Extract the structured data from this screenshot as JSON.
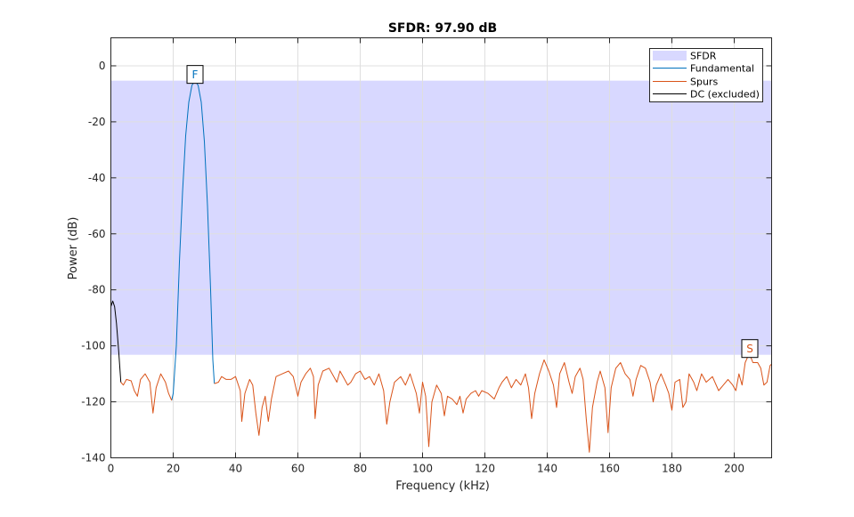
{
  "chart_data": {
    "type": "line",
    "title": "SFDR:  97.90 dB",
    "xlabel": "Frequency (kHz)",
    "ylabel": "Power (dB)",
    "xlim": [
      0,
      212
    ],
    "ylim": [
      -140,
      10
    ],
    "x_ticks": [
      0,
      20,
      40,
      60,
      80,
      100,
      120,
      140,
      160,
      180,
      200
    ],
    "y_ticks": [
      0,
      -20,
      -40,
      -60,
      -80,
      -100,
      -120,
      -140
    ],
    "grid": true,
    "legend_position": "top-right",
    "sfdr_band": {
      "top": -5.3,
      "bottom": -103.2,
      "color": "#d8d8ff"
    },
    "markers": [
      {
        "label": "F",
        "x": 27,
        "y": -5.3,
        "color": "#0072bd"
      },
      {
        "label": "S",
        "x": 205,
        "y": -103.2,
        "color": "#d95319"
      }
    ],
    "series": [
      {
        "name": "SFDR",
        "color": "#d8d8ff",
        "kind": "band"
      },
      {
        "name": "Fundamental",
        "color": "#0072bd",
        "kind": "line",
        "points": [
          [
            19.5,
            -119.5
          ],
          [
            20,
            -117
          ],
          [
            21,
            -100
          ],
          [
            22,
            -70
          ],
          [
            23,
            -45
          ],
          [
            24,
            -25
          ],
          [
            25,
            -13
          ],
          [
            26,
            -7
          ],
          [
            27,
            -5.3
          ],
          [
            28,
            -7
          ],
          [
            29,
            -13
          ],
          [
            30,
            -27
          ],
          [
            31,
            -50
          ],
          [
            32,
            -80
          ],
          [
            32.7,
            -105
          ],
          [
            33.2,
            -113.5
          ]
        ]
      },
      {
        "name": "Spurs",
        "color": "#d95319",
        "kind": "line",
        "points": [
          [
            3.2,
            -113
          ],
          [
            4,
            -114
          ],
          [
            5,
            -112
          ],
          [
            6.5,
            -112.5
          ],
          [
            7.5,
            -116
          ],
          [
            8.5,
            -118
          ],
          [
            9.5,
            -112
          ],
          [
            11,
            -110
          ],
          [
            12.5,
            -113
          ],
          [
            13.5,
            -124
          ],
          [
            14.5,
            -115
          ],
          [
            16,
            -110
          ],
          [
            17.5,
            -113
          ],
          [
            18.5,
            -117
          ],
          [
            19.5,
            -119.5
          ]
        ]
      },
      {
        "name": "Spurs",
        "color": "#d95319",
        "kind": "line",
        "points": [
          [
            33.2,
            -113.5
          ],
          [
            34.5,
            -113
          ],
          [
            35.5,
            -111
          ],
          [
            37,
            -112
          ],
          [
            38.5,
            -112
          ],
          [
            40,
            -111
          ],
          [
            41.5,
            -116
          ],
          [
            42,
            -127
          ],
          [
            43,
            -117
          ],
          [
            44.5,
            -112
          ],
          [
            45.5,
            -114
          ],
          [
            46.5,
            -124
          ],
          [
            47.5,
            -132
          ],
          [
            48.5,
            -122
          ],
          [
            49.5,
            -118
          ],
          [
            50.5,
            -127
          ],
          [
            51.5,
            -119
          ],
          [
            53,
            -111
          ],
          [
            55,
            -110
          ],
          [
            57,
            -109
          ],
          [
            58.5,
            -111
          ],
          [
            60,
            -118
          ],
          [
            61,
            -113
          ],
          [
            62.5,
            -110
          ],
          [
            64,
            -108
          ],
          [
            65,
            -111
          ],
          [
            65.5,
            -126
          ],
          [
            66.5,
            -114
          ],
          [
            68,
            -109
          ],
          [
            70,
            -108
          ],
          [
            71.5,
            -111
          ],
          [
            72.5,
            -113
          ],
          [
            73.5,
            -109
          ],
          [
            75,
            -112
          ],
          [
            76,
            -114
          ],
          [
            77,
            -113
          ],
          [
            78.5,
            -110
          ],
          [
            80,
            -109
          ],
          [
            81.5,
            -112
          ],
          [
            83,
            -111
          ],
          [
            84.5,
            -114
          ],
          [
            86,
            -110
          ],
          [
            87.5,
            -116
          ],
          [
            88.5,
            -128
          ],
          [
            89.5,
            -120
          ],
          [
            91,
            -113
          ],
          [
            93,
            -111
          ],
          [
            94.5,
            -114
          ],
          [
            96,
            -110
          ],
          [
            98,
            -117
          ],
          [
            99,
            -124
          ],
          [
            100,
            -113
          ],
          [
            101,
            -118
          ],
          [
            102,
            -136
          ],
          [
            103,
            -120
          ],
          [
            104.5,
            -114
          ],
          [
            106,
            -117
          ],
          [
            107,
            -125
          ],
          [
            108,
            -118
          ],
          [
            109.5,
            -119
          ],
          [
            111,
            -121
          ],
          [
            112,
            -118
          ],
          [
            113,
            -124
          ],
          [
            114,
            -119
          ],
          [
            115.5,
            -117
          ],
          [
            117,
            -116
          ],
          [
            118,
            -118
          ],
          [
            119,
            -116
          ],
          [
            121,
            -117
          ],
          [
            123,
            -119
          ],
          [
            124.5,
            -115
          ],
          [
            125.5,
            -113
          ],
          [
            127,
            -111
          ],
          [
            128.5,
            -115
          ],
          [
            130,
            -112
          ],
          [
            131.5,
            -114
          ],
          [
            133,
            -110
          ],
          [
            134,
            -115
          ],
          [
            135,
            -126
          ],
          [
            136,
            -117
          ],
          [
            137.5,
            -110
          ],
          [
            139,
            -105
          ],
          [
            140.5,
            -109
          ],
          [
            142,
            -114
          ],
          [
            143,
            -122
          ],
          [
            144,
            -110
          ],
          [
            145.5,
            -106
          ],
          [
            147,
            -113
          ],
          [
            148,
            -117
          ],
          [
            149,
            -111
          ],
          [
            150.5,
            -108
          ],
          [
            151.5,
            -112
          ],
          [
            152.5,
            -126
          ],
          [
            153.5,
            -138
          ],
          [
            154.5,
            -122
          ],
          [
            156,
            -113
          ],
          [
            157,
            -109
          ],
          [
            158.5,
            -115
          ],
          [
            159.5,
            -131
          ],
          [
            160.5,
            -115
          ],
          [
            162,
            -108
          ],
          [
            163.5,
            -106
          ],
          [
            165,
            -110
          ],
          [
            166.5,
            -112
          ],
          [
            167.5,
            -118
          ],
          [
            168.5,
            -112
          ],
          [
            170,
            -107
          ],
          [
            171.5,
            -108
          ],
          [
            173,
            -113
          ],
          [
            174,
            -120
          ],
          [
            175,
            -114
          ],
          [
            176.5,
            -110
          ],
          [
            178,
            -114
          ],
          [
            179,
            -117
          ],
          [
            180,
            -123
          ],
          [
            181,
            -113
          ],
          [
            182.5,
            -112
          ],
          [
            183.5,
            -122
          ],
          [
            184.5,
            -120
          ],
          [
            185.5,
            -110
          ],
          [
            187,
            -113
          ],
          [
            188,
            -116
          ],
          [
            189.5,
            -110
          ],
          [
            191,
            -113
          ],
          [
            193,
            -111
          ],
          [
            195,
            -116
          ],
          [
            196.5,
            -114
          ],
          [
            198,
            -112
          ],
          [
            199.5,
            -114
          ],
          [
            200.5,
            -116
          ],
          [
            201.5,
            -110
          ],
          [
            202.5,
            -114
          ],
          [
            203.5,
            -106
          ],
          [
            204.5,
            -103.5
          ],
          [
            205,
            -103.2
          ],
          [
            206,
            -106
          ],
          [
            207.5,
            -106
          ],
          [
            208.5,
            -108
          ],
          [
            209.5,
            -114
          ],
          [
            210.5,
            -113
          ],
          [
            211.5,
            -107
          ],
          [
            212,
            -106.5
          ]
        ]
      },
      {
        "name": "DC (excluded)",
        "color": "#000000",
        "kind": "line",
        "points": [
          [
            0,
            -86
          ],
          [
            0.6,
            -84
          ],
          [
            1.2,
            -86
          ],
          [
            1.8,
            -92
          ],
          [
            2.5,
            -102
          ],
          [
            3.2,
            -113
          ]
        ]
      }
    ]
  }
}
